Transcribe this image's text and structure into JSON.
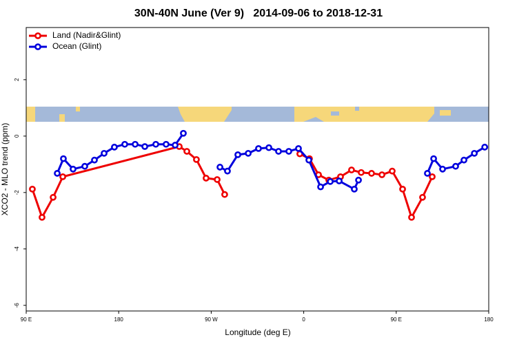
{
  "chart_data": {
    "type": "line",
    "title": "30N-40N June (Ver 9)   2014-09-06 to 2018-12-31",
    "xlabel": "Longitude (deg E)",
    "ylabel": "XCO2 - MLO trend (ppm)",
    "xlim": [
      90,
      540
    ],
    "xticks": [
      {
        "value": 90,
        "label": "90 E"
      },
      180,
      {
        "value": 270,
        "label": "90 W"
      },
      {
        "value": 360,
        "label": "0"
      },
      {
        "value": 450,
        "label": "90 E"
      },
      {
        "value": 540,
        "label": "180"
      }
    ],
    "ylim": [
      -6.2,
      3.85
    ],
    "yticks": [
      -6,
      -4,
      -2,
      0,
      2
    ],
    "grid": false,
    "legend": "top-left",
    "series": [
      {
        "name": "Land (Nadir&Glint)",
        "color": "#ee0000",
        "x": [
          96.0,
          105.4,
          116.2,
          125.6,
          238.9,
          246.3,
          255.6,
          265.0,
          275.8,
          283.1,
          null,
          356.2,
          365.6,
          374.4,
          384.4,
          395.8,
          406.5,
          415.9,
          426.0,
          436.1,
          446.1,
          456.2,
          464.9,
          475.6,
          485.0
        ],
        "values": [
          -1.88,
          -2.88,
          -2.17,
          -1.44,
          -0.37,
          -0.54,
          -0.83,
          -1.49,
          -1.54,
          -2.07,
          null,
          -0.63,
          -0.8,
          -1.37,
          -1.56,
          -1.44,
          -1.2,
          -1.29,
          -1.32,
          -1.37,
          -1.24,
          -1.88,
          -2.88,
          -2.17,
          -1.44
        ]
      },
      {
        "name": "Ocean (Glint)",
        "color": "#0000dd",
        "x": [
          120.2,
          126.2,
          135.6,
          147.0,
          156.4,
          165.8,
          175.8,
          185.9,
          196.0,
          205.4,
          216.1,
          226.1,
          234.9,
          242.9,
          null,
          278.5,
          285.8,
          295.9,
          306.0,
          316.0,
          326.1,
          335.5,
          345.5,
          354.9,
          365.0,
          376.4,
          385.8,
          394.5,
          409.2,
          413.3,
          null,
          480.3,
          486.4,
          495.1,
          507.8,
          515.9,
          526.0,
          536.1
        ],
        "values": [
          -1.32,
          -0.8,
          -1.17,
          -1.07,
          -0.85,
          -0.61,
          -0.39,
          -0.29,
          -0.29,
          -0.37,
          -0.29,
          -0.29,
          -0.32,
          0.1,
          null,
          -1.1,
          -1.24,
          -0.66,
          -0.61,
          -0.44,
          -0.41,
          -0.54,
          -0.54,
          -0.44,
          -0.85,
          -1.8,
          -1.61,
          -1.59,
          -1.88,
          -1.56,
          null,
          -1.32,
          -0.8,
          -1.17,
          -1.07,
          -0.85,
          -0.61,
          -0.39
        ]
      }
    ]
  }
}
